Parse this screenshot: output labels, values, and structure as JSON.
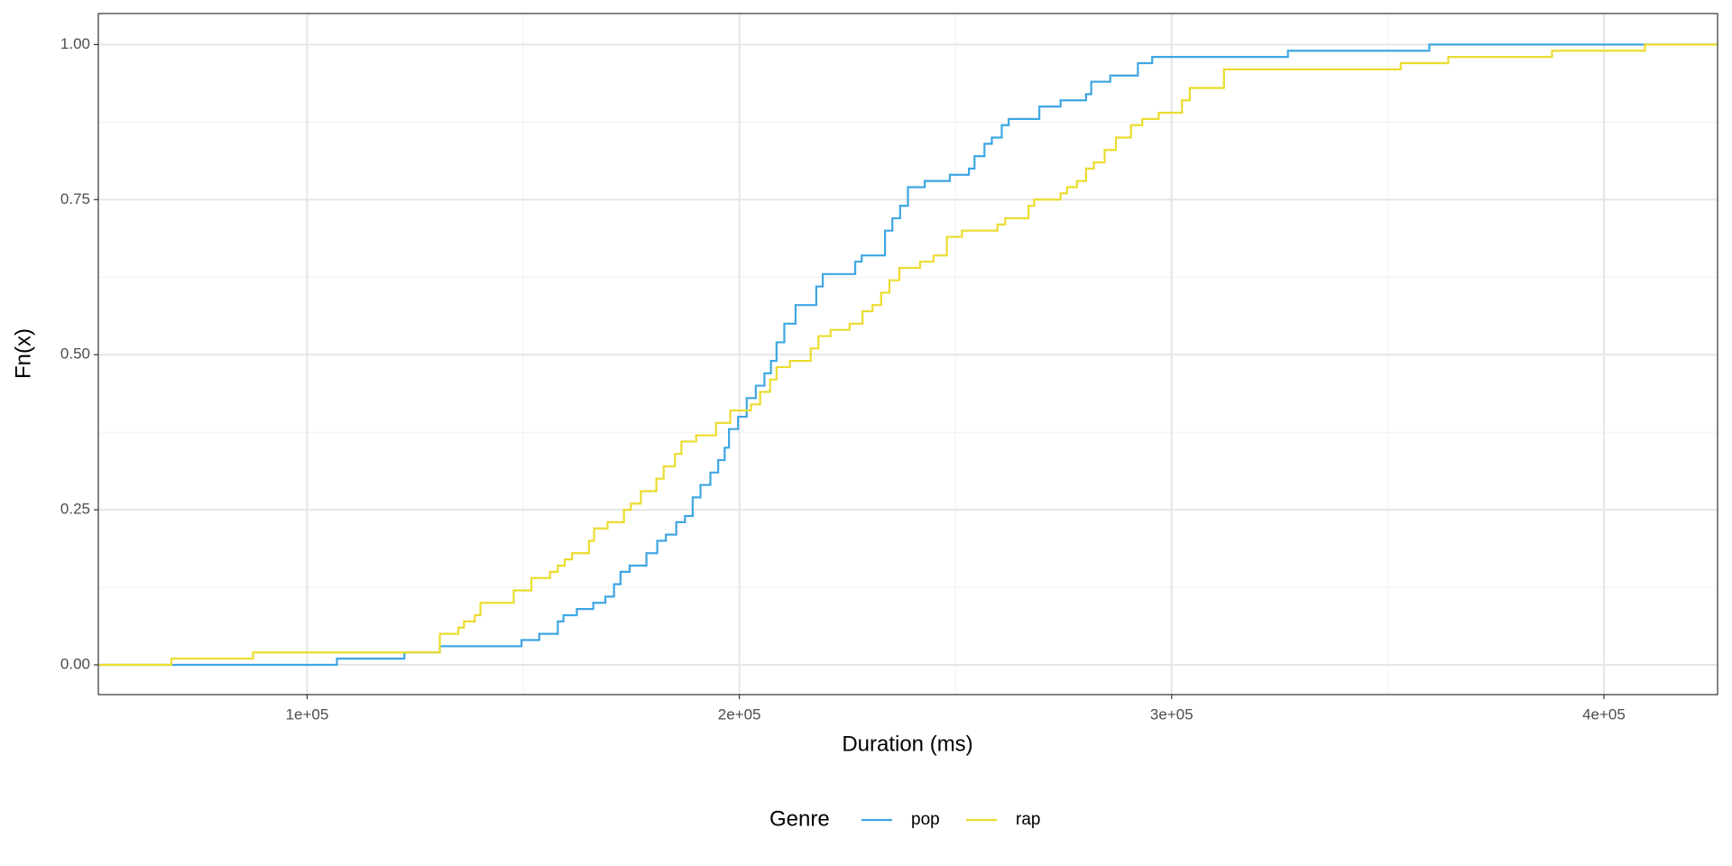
{
  "chart_data": {
    "type": "step",
    "x_label": "Duration (ms)",
    "y_label": "Fn(x)",
    "legend_title": "Genre",
    "legend": "bottom",
    "grid": true,
    "xlim": [
      51700,
      426300
    ],
    "ylim": [
      -0.048,
      1.05
    ],
    "xticks": [
      {
        "value": 100000,
        "label": "1e+05"
      },
      {
        "value": 200000,
        "label": "2e+05"
      },
      {
        "value": 300000,
        "label": "3e+05"
      },
      {
        "value": 400000,
        "label": "4e+05"
      }
    ],
    "yticks": [
      {
        "value": 0,
        "label": "0.00"
      },
      {
        "value": 0.25,
        "label": "0.25"
      },
      {
        "value": 0.5,
        "label": "0.50"
      },
      {
        "value": 0.75,
        "label": "0.75"
      },
      {
        "value": 1,
        "label": "1.00"
      }
    ],
    "x_minor_grid": [
      150000,
      250000,
      350000
    ],
    "y_minor_grid": [
      0.125,
      0.375,
      0.625,
      0.875
    ],
    "series": [
      {
        "name": "pop",
        "color": "#3ea6e3",
        "x": [
          106900,
          122500,
          130700,
          149600,
          153700,
          158000,
          159300,
          162400,
          166200,
          169000,
          171000,
          172500,
          174600,
          178500,
          181000,
          183000,
          185400,
          187400,
          189200,
          191000,
          193300,
          195100,
          196600,
          197600,
          199700,
          201700,
          203800,
          205800,
          207300,
          208600,
          210400,
          213000,
          217800,
          219300,
          226800,
          228300,
          233700,
          235400,
          237200,
          239000,
          242900,
          248700,
          253100,
          254400,
          256700,
          258400,
          260700,
          262300,
          269400,
          274300,
          280200,
          281400,
          285800,
          292200,
          295500,
          326900,
          359600
        ],
        "values": [
          0.01,
          0.02,
          0.03,
          0.04,
          0.05,
          0.07,
          0.08,
          0.09,
          0.1,
          0.11,
          0.13,
          0.15,
          0.16,
          0.18,
          0.2,
          0.21,
          0.23,
          0.24,
          0.27,
          0.29,
          0.31,
          0.33,
          0.35,
          0.38,
          0.4,
          0.43,
          0.45,
          0.47,
          0.49,
          0.52,
          0.55,
          0.58,
          0.61,
          0.63,
          0.65,
          0.66,
          0.7,
          0.72,
          0.74,
          0.77,
          0.78,
          0.79,
          0.8,
          0.82,
          0.84,
          0.85,
          0.87,
          0.88,
          0.9,
          0.91,
          0.92,
          0.94,
          0.95,
          0.97,
          0.98,
          0.99,
          1.0
        ]
      },
      {
        "name": "rap",
        "color": "#ebdc2f",
        "x": [
          68600,
          87500,
          130700,
          135000,
          136300,
          138800,
          140100,
          147800,
          151900,
          156200,
          158000,
          159600,
          161300,
          165200,
          166400,
          169500,
          173300,
          174900,
          177200,
          180800,
          182500,
          185100,
          186600,
          190000,
          194600,
          197900,
          202700,
          204800,
          207100,
          208600,
          211700,
          216500,
          218300,
          221100,
          225500,
          228500,
          230800,
          232800,
          234700,
          237000,
          241800,
          244900,
          248000,
          251500,
          259700,
          261500,
          266900,
          268200,
          274300,
          275800,
          278100,
          280200,
          282000,
          284500,
          287100,
          290600,
          293200,
          297000,
          302400,
          304200,
          312100,
          353000,
          364000,
          388000,
          409500
        ],
        "values": [
          0.01,
          0.02,
          0.05,
          0.06,
          0.07,
          0.08,
          0.1,
          0.12,
          0.14,
          0.15,
          0.16,
          0.17,
          0.18,
          0.2,
          0.22,
          0.23,
          0.25,
          0.26,
          0.28,
          0.3,
          0.32,
          0.34,
          0.36,
          0.37,
          0.39,
          0.41,
          0.42,
          0.44,
          0.46,
          0.48,
          0.49,
          0.51,
          0.53,
          0.54,
          0.55,
          0.57,
          0.58,
          0.6,
          0.62,
          0.64,
          0.65,
          0.66,
          0.69,
          0.7,
          0.71,
          0.72,
          0.74,
          0.75,
          0.76,
          0.77,
          0.78,
          0.8,
          0.81,
          0.83,
          0.85,
          0.87,
          0.88,
          0.89,
          0.91,
          0.93,
          0.96,
          0.97,
          0.98,
          0.99,
          1.0
        ]
      }
    ]
  }
}
